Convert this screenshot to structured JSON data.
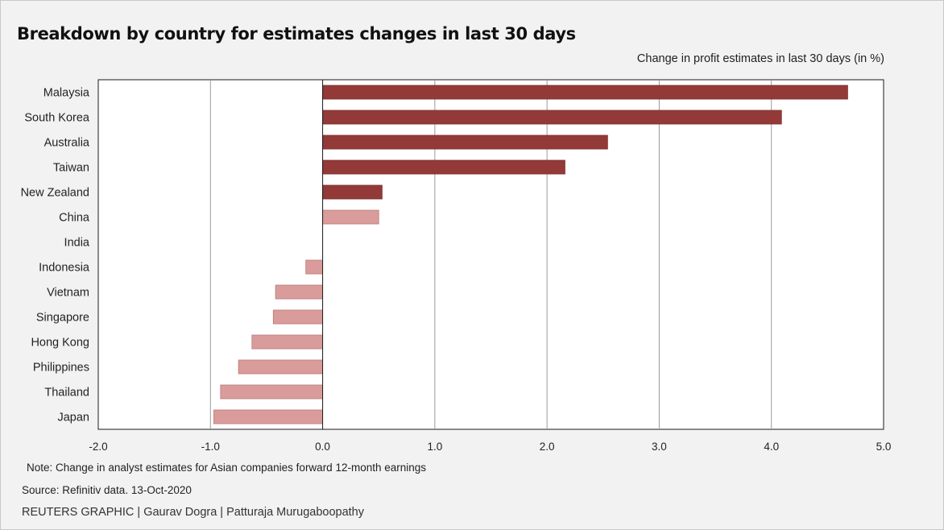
{
  "title": "Breakdown by country for estimates changes in last 30 days",
  "subtitle": "Change in profit estimates in last 30 days (in %)",
  "note": "Note: Change in analyst estimates for Asian companies forward 12-month earnings",
  "source": "Source: Refinitiv data. 13-Oct-2020",
  "credit": "REUTERS GRAPHIC | Gaurav Dogra | Patturaja Murugaboopathy",
  "colors": {
    "positive_bar": "#933a38",
    "negative_bar": "#d99c9a",
    "gridline": "#9a9a9a",
    "plot_background": "#ffffff"
  },
  "chart_data": {
    "type": "bar",
    "orientation": "horizontal",
    "categories": [
      "Malaysia",
      "South Korea",
      "Australia",
      "Taiwan",
      "New Zealand",
      "China",
      "India",
      "Indonesia",
      "Vietnam",
      "Singapore",
      "Hong Kong",
      "Philippines",
      "Thailand",
      "Japan"
    ],
    "values": [
      4.68,
      4.09,
      2.54,
      2.16,
      0.53,
      0.5,
      0.0,
      -0.15,
      -0.42,
      -0.44,
      -0.63,
      -0.75,
      -0.91,
      -0.97
    ],
    "xlim": [
      -2.0,
      5.0
    ],
    "xticks": [
      -2.0,
      -1.0,
      0.0,
      1.0,
      2.0,
      3.0,
      4.0,
      5.0
    ],
    "xtick_labels": [
      "-2.0",
      "-1.0",
      "0.0",
      "1.0",
      "2.0",
      "3.0",
      "4.0",
      "5.0"
    ],
    "grid": true
  }
}
